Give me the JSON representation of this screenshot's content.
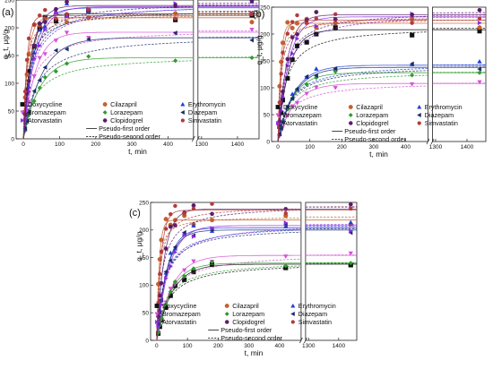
{
  "figure": {
    "note": "Three panels of adsorption kinetics; each panel plots q_t vs t with broken time axis",
    "colors": {
      "Doxycycline": "#111111",
      "Cilazapril": "#c4622d",
      "Erythromycin": "#1f3fd6",
      "Bromazepam": "#d64fd6",
      "Lorazepam": "#2f9a2f",
      "Diazepam": "#1b2a6b",
      "Atorvastatin": "#8a2be2",
      "Clopidogrel": "#5a1a6b",
      "Simvastatin": "#b23a3a"
    },
    "markers": {
      "Doxycycline": "square",
      "Cilazapril": "circle",
      "Erythromycin": "triangle-up",
      "Bromazepam": "triangle-down",
      "Lorazepam": "diamond",
      "Diazepam": "triangle-left",
      "Atorvastatin": "triangle-right",
      "Clopidogrel": "hexagon",
      "Simvastatin": "circle-small"
    }
  },
  "chart_data": [
    {
      "type": "line",
      "panel_label": "(a)",
      "xlabel": "t, min",
      "ylabel": "q_t, μg/g",
      "ylim": [
        0,
        250
      ],
      "yticks": [
        0,
        50,
        100,
        150,
        200,
        250
      ],
      "xbreak": true,
      "xticks_left": [
        0,
        100,
        200,
        300,
        400
      ],
      "xticks_right": [
        1300,
        1400
      ],
      "times": [
        5,
        10,
        15,
        30,
        45,
        60,
        90,
        120,
        180,
        420,
        1440
      ],
      "legend": {
        "entries": [
          "Doxycycline",
          "Cilazapril",
          "Erythromycin",
          "Bromazepam",
          "Lorazepam",
          "Diazepam",
          "Atorvastatin",
          "Clopidogrel",
          "Simvastatin"
        ],
        "lines": [
          "Pseudo-first order",
          "Pseudo-second order"
        ]
      },
      "series": [
        {
          "name": "Doxycycline",
          "qe": 225,
          "k": 0.05
        },
        {
          "name": "Cilazapril",
          "qe": 218,
          "k": 0.08
        },
        {
          "name": "Erythromycin",
          "qe": 236,
          "k": 0.035
        },
        {
          "name": "Bromazepam",
          "qe": 192,
          "k": 0.03
        },
        {
          "name": "Lorazepam",
          "qe": 146,
          "k": 0.022
        },
        {
          "name": "Diazepam",
          "qe": 182,
          "k": 0.02
        },
        {
          "name": "Atorvastatin",
          "qe": 238,
          "k": 0.03
        },
        {
          "name": "Clopidogrel",
          "qe": 240,
          "k": 0.04
        },
        {
          "name": "Simvastatin",
          "qe": 222,
          "k": 0.1
        }
      ]
    },
    {
      "type": "line",
      "panel_label": "(b)",
      "xlabel": "t, min",
      "ylabel": "q_t, μg/g",
      "ylim": [
        0,
        250
      ],
      "yticks": [
        0,
        50,
        100,
        150,
        200,
        250
      ],
      "xbreak": true,
      "xticks_left": [
        0,
        100,
        200,
        300,
        400
      ],
      "xticks_right": [
        1300,
        1400
      ],
      "times": [
        5,
        10,
        15,
        30,
        45,
        60,
        90,
        120,
        180,
        420,
        1440
      ],
      "legend": {
        "entries": [
          "Doxycycline",
          "Cilazapril",
          "Erythromycin",
          "Bromazepam",
          "Lorazepam",
          "Diazepam",
          "Atorvastatin",
          "Clopidogrel",
          "Simvastatin"
        ],
        "lines": [
          "Pseudo-first order",
          "Pseudo-second order"
        ]
      },
      "series": [
        {
          "name": "Doxycycline",
          "qe": 208,
          "k": 0.03
        },
        {
          "name": "Cilazapril",
          "qe": 220,
          "k": 0.12
        },
        {
          "name": "Erythromycin",
          "qe": 142,
          "k": 0.02
        },
        {
          "name": "Bromazepam",
          "qe": 108,
          "k": 0.02
        },
        {
          "name": "Lorazepam",
          "qe": 128,
          "k": 0.022
        },
        {
          "name": "Diazepam",
          "qe": 138,
          "k": 0.02
        },
        {
          "name": "Atorvastatin",
          "qe": 232,
          "k": 0.03
        },
        {
          "name": "Clopidogrel",
          "qe": 236,
          "k": 0.035
        },
        {
          "name": "Simvastatin",
          "qe": 226,
          "k": 0.08
        }
      ]
    },
    {
      "type": "line",
      "panel_label": "(c)",
      "xlabel": "t, min",
      "ylabel": "q_t, μg/g",
      "ylim": [
        0,
        250
      ],
      "yticks": [
        0,
        50,
        100,
        150,
        200,
        250
      ],
      "xbreak": true,
      "xticks_left": [
        0,
        100,
        200,
        300,
        400
      ],
      "xticks_right": [
        1300,
        1400
      ],
      "times": [
        5,
        10,
        15,
        30,
        45,
        60,
        90,
        120,
        180,
        420,
        1440
      ],
      "legend": {
        "entries": [
          "Doxycycline",
          "Cilazapril",
          "Erythromycin",
          "Bromazepam",
          "Lorazepam",
          "Diazepam",
          "Atorvastatin",
          "Clopidogrel",
          "Simvastatin"
        ],
        "lines": [
          "Pseudo-first order",
          "Pseudo-second order"
        ]
      },
      "series": [
        {
          "name": "Doxycycline",
          "qe": 138,
          "k": 0.02
        },
        {
          "name": "Cilazapril",
          "qe": 218,
          "k": 0.12
        },
        {
          "name": "Erythromycin",
          "qe": 204,
          "k": 0.03
        },
        {
          "name": "Bromazepam",
          "qe": 154,
          "k": 0.02
        },
        {
          "name": "Lorazepam",
          "qe": 140,
          "k": 0.022
        },
        {
          "name": "Diazepam",
          "qe": 200,
          "k": 0.03
        },
        {
          "name": "Atorvastatin",
          "qe": 208,
          "k": 0.025
        },
        {
          "name": "Clopidogrel",
          "qe": 238,
          "k": 0.04
        },
        {
          "name": "Simvastatin",
          "qe": 236,
          "k": 0.07
        }
      ]
    }
  ]
}
